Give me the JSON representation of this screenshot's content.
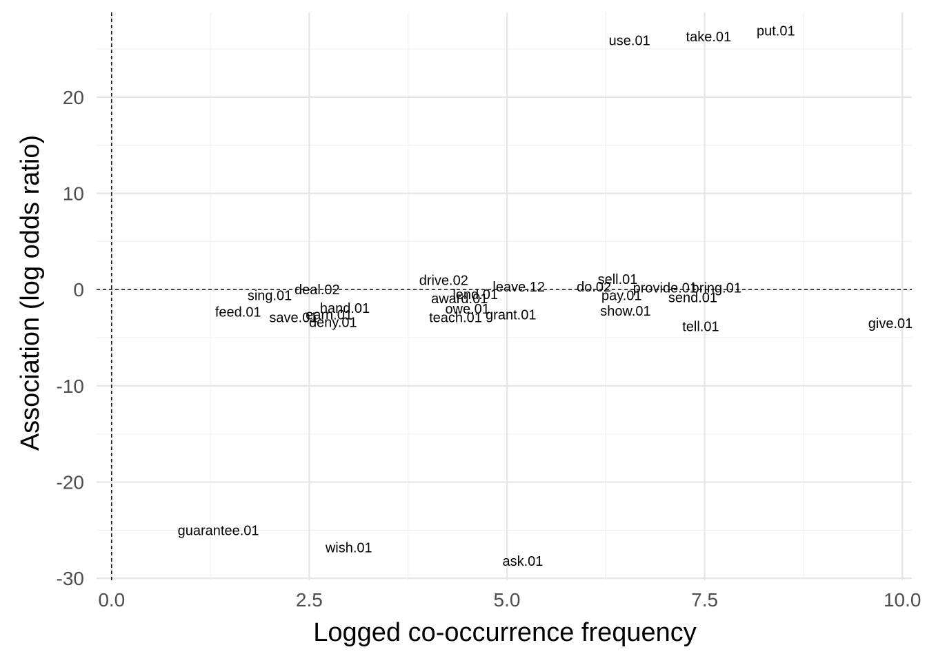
{
  "chart_data": {
    "type": "scatter",
    "title": "",
    "xlabel": "Logged co-occurrence frequency",
    "ylabel": "Association (log odds ratio)",
    "xlim": [
      -0.19,
      10.12
    ],
    "ylim": [
      -30.2,
      28.8
    ],
    "xticks": [
      0,
      2.5,
      5,
      7.5,
      10
    ],
    "xtick_labels": [
      "0.0",
      "2.5",
      "5.0",
      "7.5",
      "10.0"
    ],
    "yticks": [
      -30,
      -20,
      -10,
      0,
      10,
      20
    ],
    "ytick_labels": [
      "-30",
      "-20",
      "-10",
      "0",
      "10",
      "20"
    ],
    "grid": true,
    "reference_lines": {
      "x": 0,
      "y": 0
    },
    "points": [
      {
        "label": "put.01",
        "x": 8.4,
        "y": 26.9
      },
      {
        "label": "take.01",
        "x": 7.55,
        "y": 26.3
      },
      {
        "label": "use.01",
        "x": 6.55,
        "y": 25.9
      },
      {
        "label": "give.01",
        "x": 9.85,
        "y": -3.5
      },
      {
        "label": "bring.01",
        "x": 7.65,
        "y": 0.2
      },
      {
        "label": "provide.01",
        "x": 7.0,
        "y": 0.2
      },
      {
        "label": "send.01",
        "x": 7.35,
        "y": -0.8
      },
      {
        "label": "tell.01",
        "x": 7.45,
        "y": -3.8
      },
      {
        "label": "sell.01",
        "x": 6.4,
        "y": 1.1
      },
      {
        "label": "do.02",
        "x": 6.1,
        "y": 0.3
      },
      {
        "label": "pay.01",
        "x": 6.45,
        "y": -0.6
      },
      {
        "label": "show.01",
        "x": 6.5,
        "y": -2.2
      },
      {
        "label": "leave.12",
        "x": 5.15,
        "y": 0.3
      },
      {
        "label": "lend.01",
        "x": 4.6,
        "y": -0.5
      },
      {
        "label": "award.01",
        "x": 4.4,
        "y": -0.9
      },
      {
        "label": "owe.01",
        "x": 4.5,
        "y": -2.0
      },
      {
        "label": "grant.01",
        "x": 5.05,
        "y": -2.6
      },
      {
        "label": "teach.01",
        "x": 4.35,
        "y": -2.9
      },
      {
        "label": "drive.02",
        "x": 4.2,
        "y": 1.0
      },
      {
        "label": "hand.01",
        "x": 2.95,
        "y": -1.9
      },
      {
        "label": "deal.02",
        "x": 2.6,
        "y": 0.0
      },
      {
        "label": "sing.01",
        "x": 2.0,
        "y": -0.6
      },
      {
        "label": "save.01",
        "x": 2.3,
        "y": -2.9
      },
      {
        "label": "earn.01",
        "x": 2.75,
        "y": -2.6
      },
      {
        "label": "deny.01",
        "x": 2.8,
        "y": -3.4
      },
      {
        "label": "feed.01",
        "x": 1.6,
        "y": -2.3
      },
      {
        "label": "wish.01",
        "x": 3.0,
        "y": -26.8
      },
      {
        "label": "ask.01",
        "x": 5.2,
        "y": -28.2
      },
      {
        "label": "guarantee.01",
        "x": 1.35,
        "y": -25.0
      }
    ]
  }
}
